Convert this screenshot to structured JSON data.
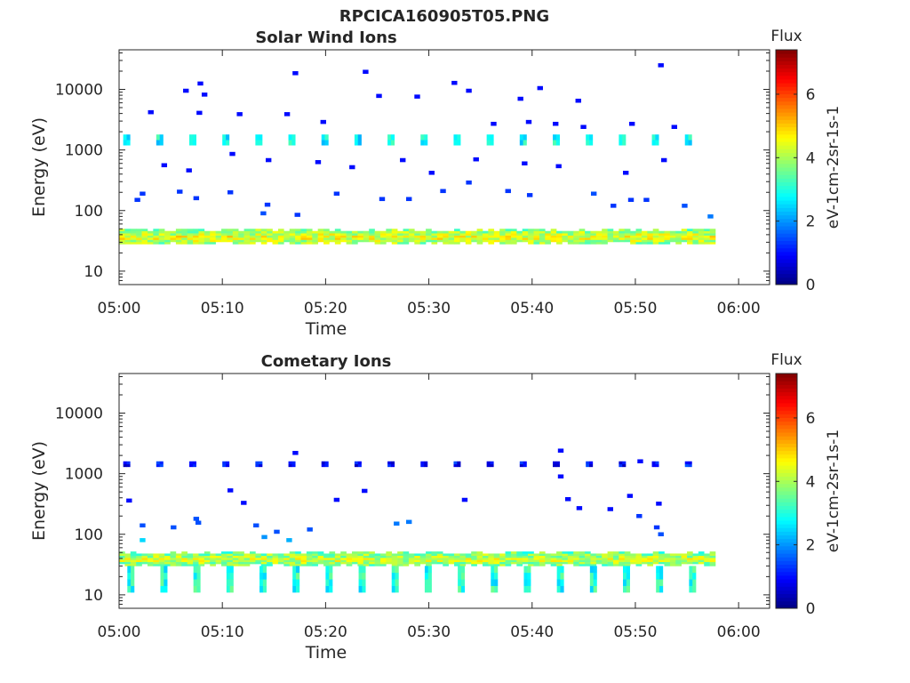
{
  "figure_title": "RPCICA160905T05.PNG",
  "chart_data": [
    {
      "type": "heatmap",
      "title": "Solar Wind Ions",
      "xlabel": "Time",
      "ylabel": "Energy (eV)",
      "x_range_minutes": [
        0,
        63
      ],
      "x_ticks": [
        "05:00",
        "05:10",
        "05:20",
        "05:30",
        "05:40",
        "05:50",
        "06:00"
      ],
      "y_scale": "log",
      "y_range": [
        6,
        45000
      ],
      "y_ticks": [
        "10",
        "100",
        "1000",
        "10000"
      ],
      "colorbar": {
        "title": "Flux",
        "label": "eV-1cm-2sr-1s-1",
        "range": [
          0,
          7.4
        ],
        "ticks": [
          "0",
          "2",
          "4",
          "6"
        ],
        "colormap": "jet"
      },
      "data_end_minute": 57.2,
      "bands": [
        {
          "name": "low-energy band",
          "energy_range": [
            28,
            50
          ],
          "mean_flux": 3.7,
          "coverage": [
            0,
            57.2
          ]
        }
      ],
      "periodic_features": [
        {
          "energy_range": [
            1200,
            1800
          ],
          "period_minutes": 3.2,
          "flux": 2.8,
          "start_minute": 0.4
        }
      ],
      "scattered_points": [
        {
          "t": 2.8,
          "e": 4200,
          "flux": 1.0
        },
        {
          "t": 6.2,
          "e": 9500,
          "flux": 1.0
        },
        {
          "t": 7.6,
          "e": 12500,
          "flux": 1.0
        },
        {
          "t": 8.0,
          "e": 8200,
          "flux": 1.0
        },
        {
          "t": 7.5,
          "e": 4100,
          "flux": 1.0
        },
        {
          "t": 11.4,
          "e": 3900,
          "flux": 1.0
        },
        {
          "t": 16.0,
          "e": 3900,
          "flux": 1.0
        },
        {
          "t": 16.8,
          "e": 18500,
          "flux": 1.0
        },
        {
          "t": 19.5,
          "e": 2900,
          "flux": 1.0
        },
        {
          "t": 23.6,
          "e": 19500,
          "flux": 1.0
        },
        {
          "t": 24.9,
          "e": 7800,
          "flux": 1.0
        },
        {
          "t": 28.6,
          "e": 7600,
          "flux": 1.0
        },
        {
          "t": 32.2,
          "e": 12800,
          "flux": 1.0
        },
        {
          "t": 33.6,
          "e": 9500,
          "flux": 1.0
        },
        {
          "t": 38.6,
          "e": 7000,
          "flux": 1.0
        },
        {
          "t": 40.5,
          "e": 10500,
          "flux": 1.0
        },
        {
          "t": 44.2,
          "e": 6500,
          "flux": 1.0
        },
        {
          "t": 52.2,
          "e": 25000,
          "flux": 1.0
        },
        {
          "t": 39.4,
          "e": 2900,
          "flux": 1.0
        },
        {
          "t": 42.0,
          "e": 2700,
          "flux": 1.0
        },
        {
          "t": 36.0,
          "e": 2700,
          "flux": 1.0
        },
        {
          "t": 44.7,
          "e": 2400,
          "flux": 1.0
        },
        {
          "t": 49.4,
          "e": 2700,
          "flux": 1.0
        },
        {
          "t": 53.5,
          "e": 2400,
          "flux": 1.0
        },
        {
          "t": 4.1,
          "e": 560,
          "flux": 1.0
        },
        {
          "t": 6.5,
          "e": 460,
          "flux": 1.0
        },
        {
          "t": 10.7,
          "e": 860,
          "flux": 1.0
        },
        {
          "t": 14.2,
          "e": 680,
          "flux": 1.0
        },
        {
          "t": 19.0,
          "e": 630,
          "flux": 1.0
        },
        {
          "t": 22.3,
          "e": 520,
          "flux": 1.0
        },
        {
          "t": 27.2,
          "e": 680,
          "flux": 1.0
        },
        {
          "t": 30.0,
          "e": 420,
          "flux": 1.0
        },
        {
          "t": 34.3,
          "e": 700,
          "flux": 1.0
        },
        {
          "t": 39.0,
          "e": 600,
          "flux": 1.0
        },
        {
          "t": 42.3,
          "e": 540,
          "flux": 1.0
        },
        {
          "t": 48.8,
          "e": 420,
          "flux": 1.0
        },
        {
          "t": 52.5,
          "e": 680,
          "flux": 1.0
        },
        {
          "t": 1.5,
          "e": 150,
          "flux": 1.3
        },
        {
          "t": 2.0,
          "e": 190,
          "flux": 1.3
        },
        {
          "t": 5.6,
          "e": 205,
          "flux": 1.3
        },
        {
          "t": 7.2,
          "e": 160,
          "flux": 1.3
        },
        {
          "t": 10.5,
          "e": 200,
          "flux": 1.3
        },
        {
          "t": 14.1,
          "e": 125,
          "flux": 1.3
        },
        {
          "t": 13.7,
          "e": 90,
          "flux": 1.5
        },
        {
          "t": 17.0,
          "e": 85,
          "flux": 1.3
        },
        {
          "t": 20.8,
          "e": 190,
          "flux": 1.3
        },
        {
          "t": 25.2,
          "e": 155,
          "flux": 1.3
        },
        {
          "t": 27.8,
          "e": 155,
          "flux": 1.3
        },
        {
          "t": 31.1,
          "e": 210,
          "flux": 1.3
        },
        {
          "t": 33.6,
          "e": 290,
          "flux": 1.3
        },
        {
          "t": 37.4,
          "e": 210,
          "flux": 1.3
        },
        {
          "t": 39.5,
          "e": 180,
          "flux": 1.3
        },
        {
          "t": 45.7,
          "e": 190,
          "flux": 1.5
        },
        {
          "t": 47.6,
          "e": 120,
          "flux": 1.3
        },
        {
          "t": 49.3,
          "e": 150,
          "flux": 1.3
        },
        {
          "t": 50.8,
          "e": 150,
          "flux": 1.3
        },
        {
          "t": 54.5,
          "e": 120,
          "flux": 1.5
        },
        {
          "t": 57.0,
          "e": 80,
          "flux": 1.8
        }
      ]
    },
    {
      "type": "heatmap",
      "title": "Cometary Ions",
      "xlabel": "Time",
      "ylabel": "Energy (eV)",
      "x_range_minutes": [
        0,
        63
      ],
      "x_ticks": [
        "05:00",
        "05:10",
        "05:20",
        "05:30",
        "05:40",
        "05:50",
        "06:00"
      ],
      "y_scale": "log",
      "y_range": [
        6,
        45000
      ],
      "y_ticks": [
        "10",
        "100",
        "1000",
        "10000"
      ],
      "colorbar": {
        "title": "Flux",
        "label": "eV-1cm-2sr-1s-1",
        "range": [
          0,
          7.4
        ],
        "ticks": [
          "0",
          "2",
          "4",
          "6"
        ],
        "colormap": "jet"
      },
      "data_end_minute": 57.2,
      "bands": [
        {
          "name": "low-energy band",
          "energy_range": [
            30,
            52
          ],
          "mean_flux": 3.5,
          "coverage": [
            0,
            57.2
          ]
        }
      ],
      "periodic_features": [
        {
          "energy_range": [
            1300,
            1600
          ],
          "period_minutes": 3.2,
          "flux": 1.0,
          "start_minute": 0.4
        },
        {
          "energy_range": [
            11,
            30
          ],
          "period_minutes": 3.2,
          "flux": 3.0,
          "start_minute": 0.8
        }
      ],
      "scattered_points": [
        {
          "t": 16.8,
          "e": 2200,
          "flux": 1.0
        },
        {
          "t": 42.5,
          "e": 2400,
          "flux": 1.0
        },
        {
          "t": 50.2,
          "e": 1600,
          "flux": 1.0
        },
        {
          "t": 42.5,
          "e": 900,
          "flux": 1.0
        },
        {
          "t": 10.5,
          "e": 530,
          "flux": 1.0
        },
        {
          "t": 23.5,
          "e": 520,
          "flux": 1.0
        },
        {
          "t": 0.7,
          "e": 360,
          "flux": 1.0
        },
        {
          "t": 11.8,
          "e": 330,
          "flux": 1.0
        },
        {
          "t": 20.8,
          "e": 370,
          "flux": 1.0
        },
        {
          "t": 33.2,
          "e": 370,
          "flux": 1.0
        },
        {
          "t": 43.2,
          "e": 380,
          "flux": 1.0
        },
        {
          "t": 49.2,
          "e": 430,
          "flux": 1.0
        },
        {
          "t": 52.0,
          "e": 320,
          "flux": 1.0
        },
        {
          "t": 7.2,
          "e": 180,
          "flux": 1.5
        },
        {
          "t": 7.4,
          "e": 155,
          "flux": 1.5
        },
        {
          "t": 13.0,
          "e": 140,
          "flux": 1.5
        },
        {
          "t": 27.8,
          "e": 160,
          "flux": 1.8
        },
        {
          "t": 26.6,
          "e": 150,
          "flux": 1.8
        },
        {
          "t": 44.3,
          "e": 270,
          "flux": 1.0
        },
        {
          "t": 47.3,
          "e": 260,
          "flux": 1.0
        },
        {
          "t": 50.1,
          "e": 200,
          "flux": 1.3
        },
        {
          "t": 51.8,
          "e": 130,
          "flux": 1.3
        },
        {
          "t": 2.0,
          "e": 140,
          "flux": 1.5
        },
        {
          "t": 5.0,
          "e": 130,
          "flux": 1.5
        },
        {
          "t": 15.0,
          "e": 110,
          "flux": 1.5
        },
        {
          "t": 18.2,
          "e": 120,
          "flux": 1.5
        },
        {
          "t": 52.2,
          "e": 100,
          "flux": 1.5
        },
        {
          "t": 2.0,
          "e": 80,
          "flux": 2.5
        },
        {
          "t": 13.8,
          "e": 90,
          "flux": 2.0
        },
        {
          "t": 16.2,
          "e": 80,
          "flux": 2.2
        }
      ]
    }
  ]
}
